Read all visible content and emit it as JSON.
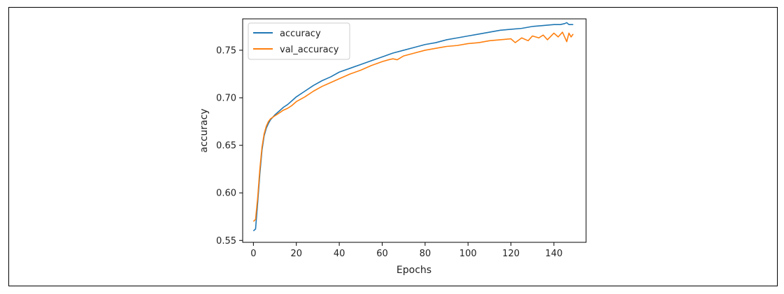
{
  "chart_data": {
    "type": "line",
    "xlabel": "Epochs",
    "ylabel": "accuracy",
    "xlim": [
      -5,
      155
    ],
    "ylim": [
      0.548,
      0.783
    ],
    "xticks": [
      0,
      20,
      40,
      60,
      80,
      100,
      120,
      140
    ],
    "yticks": [
      0.55,
      0.6,
      0.65,
      0.7,
      0.75
    ],
    "ytick_labels": [
      "0.55",
      "0.60",
      "0.65",
      "0.70",
      "0.75"
    ],
    "legend": "top-left",
    "grid": false,
    "series": [
      {
        "name": "accuracy",
        "color": "#1f77b4",
        "points": [
          [
            0,
            0.56
          ],
          [
            1,
            0.562
          ],
          [
            2,
            0.59
          ],
          [
            3,
            0.62
          ],
          [
            4,
            0.645
          ],
          [
            5,
            0.66
          ],
          [
            6,
            0.668
          ],
          [
            7,
            0.673
          ],
          [
            8,
            0.677
          ],
          [
            10,
            0.682
          ],
          [
            12,
            0.686
          ],
          [
            14,
            0.69
          ],
          [
            16,
            0.693
          ],
          [
            18,
            0.697
          ],
          [
            20,
            0.701
          ],
          [
            24,
            0.707
          ],
          [
            28,
            0.713
          ],
          [
            32,
            0.718
          ],
          [
            36,
            0.722
          ],
          [
            40,
            0.727
          ],
          [
            45,
            0.731
          ],
          [
            50,
            0.735
          ],
          [
            55,
            0.739
          ],
          [
            60,
            0.743
          ],
          [
            65,
            0.747
          ],
          [
            70,
            0.75
          ],
          [
            75,
            0.753
          ],
          [
            80,
            0.756
          ],
          [
            85,
            0.758
          ],
          [
            90,
            0.761
          ],
          [
            95,
            0.763
          ],
          [
            100,
            0.765
          ],
          [
            105,
            0.767
          ],
          [
            110,
            0.769
          ],
          [
            115,
            0.771
          ],
          [
            120,
            0.772
          ],
          [
            125,
            0.773
          ],
          [
            130,
            0.775
          ],
          [
            135,
            0.776
          ],
          [
            140,
            0.777
          ],
          [
            143,
            0.777
          ],
          [
            145,
            0.778
          ],
          [
            146,
            0.779
          ],
          [
            147,
            0.777
          ],
          [
            149,
            0.777
          ]
        ]
      },
      {
        "name": "val_accuracy",
        "color": "#ff7f0e",
        "points": [
          [
            0,
            0.57
          ],
          [
            1,
            0.572
          ],
          [
            2,
            0.595
          ],
          [
            3,
            0.625
          ],
          [
            4,
            0.648
          ],
          [
            5,
            0.662
          ],
          [
            6,
            0.67
          ],
          [
            7,
            0.675
          ],
          [
            8,
            0.678
          ],
          [
            10,
            0.681
          ],
          [
            12,
            0.684
          ],
          [
            14,
            0.687
          ],
          [
            16,
            0.689
          ],
          [
            18,
            0.692
          ],
          [
            20,
            0.696
          ],
          [
            24,
            0.701
          ],
          [
            28,
            0.707
          ],
          [
            32,
            0.712
          ],
          [
            36,
            0.716
          ],
          [
            40,
            0.72
          ],
          [
            45,
            0.725
          ],
          [
            50,
            0.729
          ],
          [
            55,
            0.734
          ],
          [
            60,
            0.738
          ],
          [
            63,
            0.74
          ],
          [
            65,
            0.741
          ],
          [
            67,
            0.74
          ],
          [
            70,
            0.744
          ],
          [
            75,
            0.747
          ],
          [
            80,
            0.75
          ],
          [
            85,
            0.752
          ],
          [
            90,
            0.754
          ],
          [
            95,
            0.755
          ],
          [
            100,
            0.757
          ],
          [
            105,
            0.758
          ],
          [
            110,
            0.76
          ],
          [
            115,
            0.761
          ],
          [
            120,
            0.762
          ],
          [
            122,
            0.758
          ],
          [
            125,
            0.763
          ],
          [
            128,
            0.76
          ],
          [
            130,
            0.765
          ],
          [
            133,
            0.763
          ],
          [
            135,
            0.766
          ],
          [
            137,
            0.761
          ],
          [
            140,
            0.768
          ],
          [
            142,
            0.764
          ],
          [
            144,
            0.769
          ],
          [
            146,
            0.759
          ],
          [
            147,
            0.768
          ],
          [
            148,
            0.764
          ],
          [
            149,
            0.767
          ]
        ]
      }
    ]
  }
}
